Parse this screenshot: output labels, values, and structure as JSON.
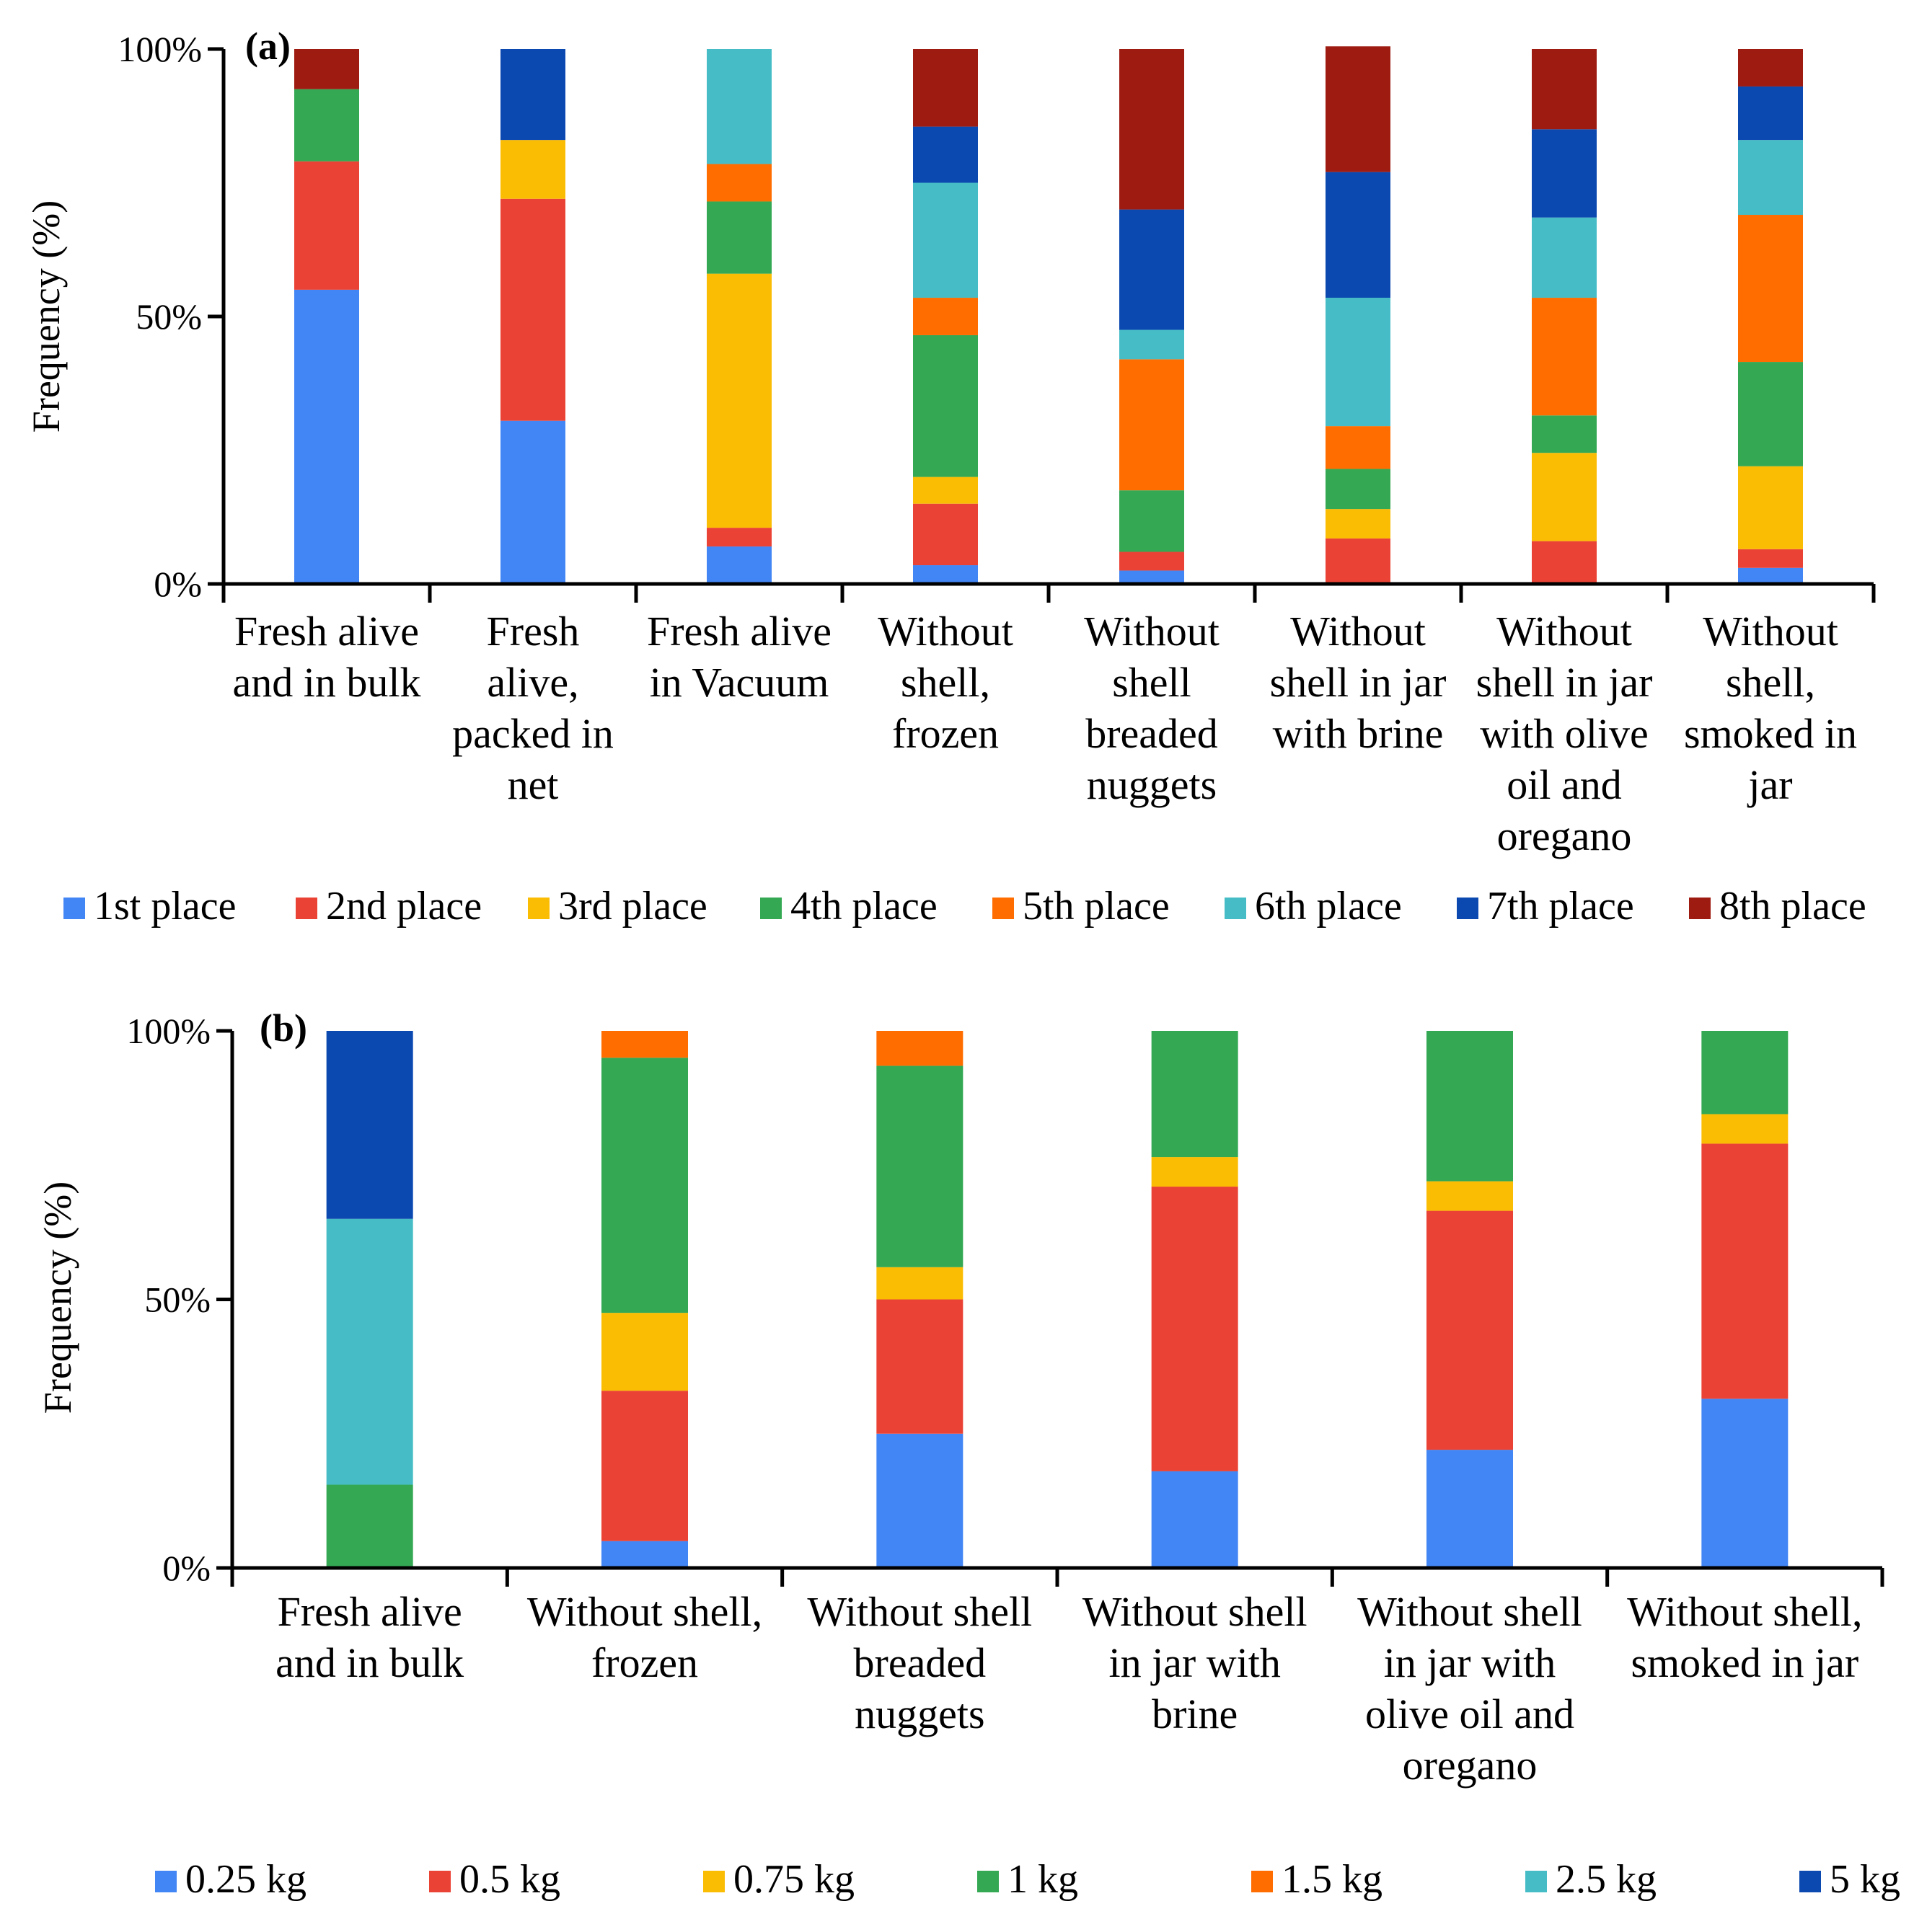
{
  "chart_data": [
    {
      "type": "bar",
      "stacked": true,
      "panel_label": "(a)",
      "ylabel": "Frequency (%)",
      "ylim": [
        0,
        100
      ],
      "yticks": [
        "0%",
        "50%",
        "100%"
      ],
      "categories": [
        [
          "Fresh alive",
          "and in bulk"
        ],
        [
          "Fresh",
          "alive,",
          "packed in",
          "net"
        ],
        [
          "Fresh alive",
          "in Vacuum"
        ],
        [
          "Without",
          "shell,",
          "frozen"
        ],
        [
          "Without",
          "shell",
          "breaded",
          "nuggets"
        ],
        [
          "Without",
          "shell in jar",
          "with brine"
        ],
        [
          "Without",
          "shell in jar",
          "with olive",
          "oil and",
          "oregano"
        ],
        [
          "Without",
          "shell,",
          "smoked in",
          "jar"
        ]
      ],
      "legend_position": "bottom",
      "series": [
        {
          "name": "1st place",
          "color": "#4285F4",
          "values": [
            55,
            30.5,
            7,
            3.5,
            2.5,
            0,
            0,
            3
          ]
        },
        {
          "name": "2nd place",
          "color": "#EA4335",
          "values": [
            24,
            41.5,
            3.5,
            11.5,
            3.5,
            8.5,
            8,
            3.5
          ]
        },
        {
          "name": "3rd place",
          "color": "#FBBC04",
          "values": [
            0,
            11,
            47.5,
            5,
            0,
            5.5,
            16.5,
            15.5
          ]
        },
        {
          "name": "4th place",
          "color": "#34A853",
          "values": [
            13.5,
            0,
            13.5,
            26.5,
            11.5,
            7.5,
            7,
            19.5
          ]
        },
        {
          "name": "5th place",
          "color": "#FF6D01",
          "values": [
            0,
            0,
            7,
            7,
            24.5,
            8,
            22,
            27.5
          ]
        },
        {
          "name": "6th place",
          "color": "#46BDC6",
          "values": [
            0,
            0,
            21.5,
            21.5,
            5.5,
            24,
            15,
            14
          ]
        },
        {
          "name": "7th place",
          "color": "#0B48B0",
          "values": [
            0,
            17,
            0,
            10.5,
            22.5,
            23.5,
            16.5,
            10
          ]
        },
        {
          "name": "8th place",
          "color": "#9E1B12",
          "values": [
            7.5,
            0,
            0,
            14.5,
            30,
            23.5,
            15,
            7
          ]
        }
      ]
    },
    {
      "type": "bar",
      "stacked": true,
      "panel_label": "(b)",
      "ylabel": "Frequency (%)",
      "ylim": [
        0,
        100
      ],
      "yticks": [
        "0%",
        "50%",
        "100%"
      ],
      "categories": [
        [
          "Fresh alive",
          "and in bulk"
        ],
        [
          "Without shell,",
          "frozen"
        ],
        [
          "Without shell",
          "breaded",
          "nuggets"
        ],
        [
          "Without shell",
          "in jar with",
          "brine"
        ],
        [
          "Without shell",
          "in jar with",
          "olive oil and",
          "oregano"
        ],
        [
          "Without shell,",
          "smoked in jar"
        ]
      ],
      "legend_position": "bottom",
      "series": [
        {
          "name": "0.25 kg",
          "color": "#4285F4",
          "values": [
            0,
            5,
            25,
            18,
            22,
            31.5
          ]
        },
        {
          "name": "0.5 kg",
          "color": "#EA4335",
          "values": [
            0,
            28,
            25,
            53,
            44.5,
            47.5
          ]
        },
        {
          "name": "0.75 kg",
          "color": "#FBBC04",
          "values": [
            0,
            14.5,
            6,
            5.5,
            5.5,
            5.5
          ]
        },
        {
          "name": "1 kg",
          "color": "#34A853",
          "values": [
            15.5,
            47.5,
            37.5,
            23.5,
            28,
            15.5
          ]
        },
        {
          "name": "1.5 kg",
          "color": "#FF6D01",
          "values": [
            0,
            5,
            6.5,
            0,
            0,
            0
          ]
        },
        {
          "name": "2.5 kg",
          "color": "#46BDC6",
          "values": [
            49.5,
            0,
            0,
            0,
            0,
            0
          ]
        },
        {
          "name": "5 kg",
          "color": "#0B48B0",
          "values": [
            35,
            0,
            0,
            0,
            0,
            0
          ]
        }
      ]
    }
  ]
}
